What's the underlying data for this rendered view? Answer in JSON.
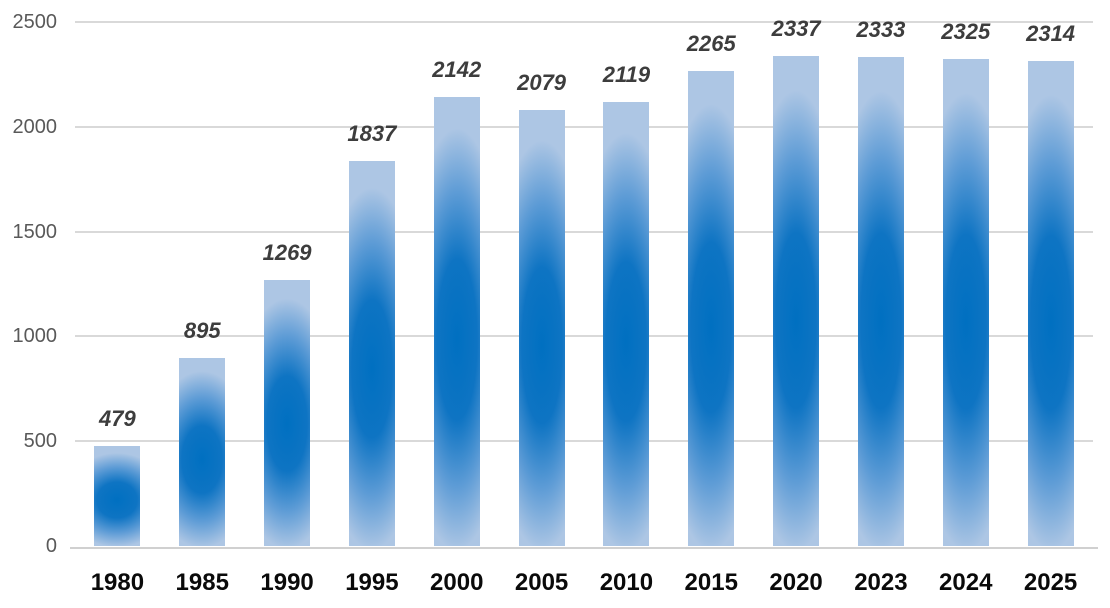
{
  "chart_data": {
    "type": "bar",
    "title": "",
    "xlabel": "",
    "ylabel": "",
    "categories": [
      "1980",
      "1985",
      "1990",
      "1995",
      "2000",
      "2005",
      "2010",
      "2015",
      "2020",
      "2023",
      "2024",
      "2025"
    ],
    "values": [
      479,
      895,
      1269,
      1837,
      2142,
      2079,
      2119,
      2265,
      2337,
      2333,
      2325,
      2314
    ],
    "data_labels": [
      "479",
      "895",
      "1269",
      "1837",
      "2142",
      "2079",
      "2119",
      "2265",
      "2337",
      "2333",
      "2325",
      "2314"
    ],
    "ylim": [
      0,
      2500
    ],
    "yticks": [
      0,
      500,
      1000,
      1500,
      2000,
      2500
    ],
    "ytick_labels": [
      "0",
      "500",
      "1000",
      "1500",
      "2000",
      "2500"
    ],
    "grid": true,
    "legend": false,
    "legend_position": "none",
    "colors": {
      "bar_gradient_center": "#0070c1",
      "bar_gradient_mid": "#0e74c3",
      "bar_gradient_outer": "#5e9cd6",
      "bar_gradient_edge": "#adc6e4",
      "gridline": "#d9d9d9",
      "axis_line": "#d0d0d0",
      "value_label": "#3d3d3d",
      "x_tick_label": "#0a0a0a",
      "y_tick_label": "#595959",
      "background": "#ffffff"
    }
  }
}
